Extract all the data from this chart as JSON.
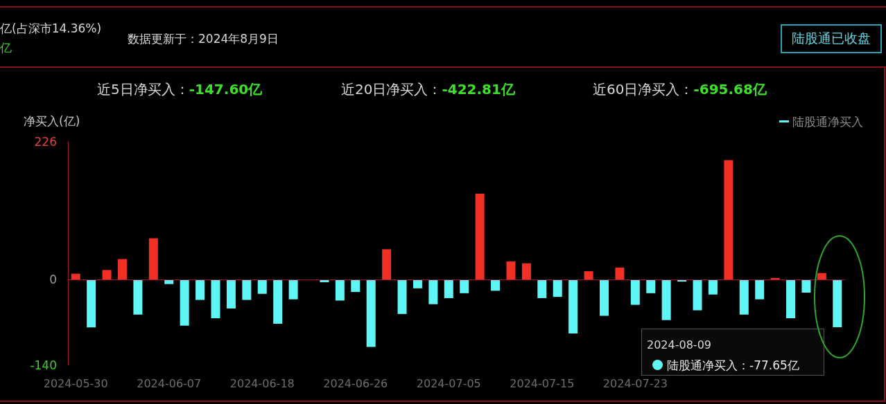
{
  "chart_data": {
    "type": "bar",
    "ylabel": "净买入(亿)",
    "categories": [
      "2024-05-30",
      null,
      null,
      null,
      null,
      null,
      "2024-06-07",
      null,
      null,
      null,
      null,
      null,
      "2024-06-18",
      null,
      null,
      null,
      null,
      null,
      "2024-06-26",
      null,
      null,
      null,
      null,
      null,
      "2024-07-05",
      null,
      null,
      null,
      null,
      null,
      "2024-07-15",
      null,
      null,
      null,
      null,
      null,
      "2024-07-23",
      null,
      null,
      null,
      null,
      null,
      null,
      null,
      null,
      null,
      null,
      null,
      null,
      null
    ],
    "series": [
      {
        "name": "陆股通净买入",
        "color": "#5ff5f5",
        "values": [
          10,
          -78,
          16,
          34,
          -57,
          68,
          -7,
          -75,
          -33,
          -63,
          -47,
          -33,
          -23,
          -72,
          -32,
          null,
          -4,
          -34,
          -20,
          -110,
          50,
          -56,
          -14,
          -40,
          -30,
          -22,
          141,
          -18,
          30,
          27,
          -30,
          -28,
          -88,
          14,
          -59,
          20,
          -41,
          -22,
          -66,
          -3,
          -50,
          -24,
          196,
          -57,
          -32,
          3,
          -63,
          -21,
          11,
          -77.65
        ],
        "colors": [
          "#f03024",
          "#5ff5f5",
          "#f03024",
          "#f03024",
          "#5ff5f5",
          "#f03024",
          "#5ff5f5",
          "#5ff5f5",
          "#5ff5f5",
          "#5ff5f5",
          "#5ff5f5",
          "#5ff5f5",
          "#5ff5f5",
          "#5ff5f5",
          "#5ff5f5",
          "#5ff5f5",
          "#5ff5f5",
          "#5ff5f5",
          "#5ff5f5",
          "#5ff5f5",
          "#f03024",
          "#5ff5f5",
          "#5ff5f5",
          "#5ff5f5",
          "#5ff5f5",
          "#5ff5f5",
          "#f03024",
          "#5ff5f5",
          "#f03024",
          "#f03024",
          "#5ff5f5",
          "#5ff5f5",
          "#5ff5f5",
          "#f03024",
          "#5ff5f5",
          "#f03024",
          "#5ff5f5",
          "#5ff5f5",
          "#5ff5f5",
          "#5ff5f5",
          "#5ff5f5",
          "#5ff5f5",
          "#f03024",
          "#5ff5f5",
          "#5ff5f5",
          "#f03024",
          "#5ff5f5",
          "#5ff5f5",
          "#f03024",
          "#5ff5f5"
        ]
      }
    ],
    "ylim": [
      -140,
      226
    ],
    "yticks": [
      -140,
      0,
      226
    ],
    "grid": false,
    "ref_lines": [
      {
        "axis": "y",
        "value": 0,
        "color": "#a0182a"
      }
    ],
    "legend": "top right",
    "annotations": [
      "亿(占深市14.36%)",
      "亿",
      "数据更新于：2024年8月9日",
      "陆股通已收盘",
      "近5日净买入：-147.60亿",
      "近20日净买入：-422.81亿",
      "近60日净买入：-695.68亿",
      "2024-08-09",
      "陆股通净买入：-77.65亿"
    ]
  }
}
